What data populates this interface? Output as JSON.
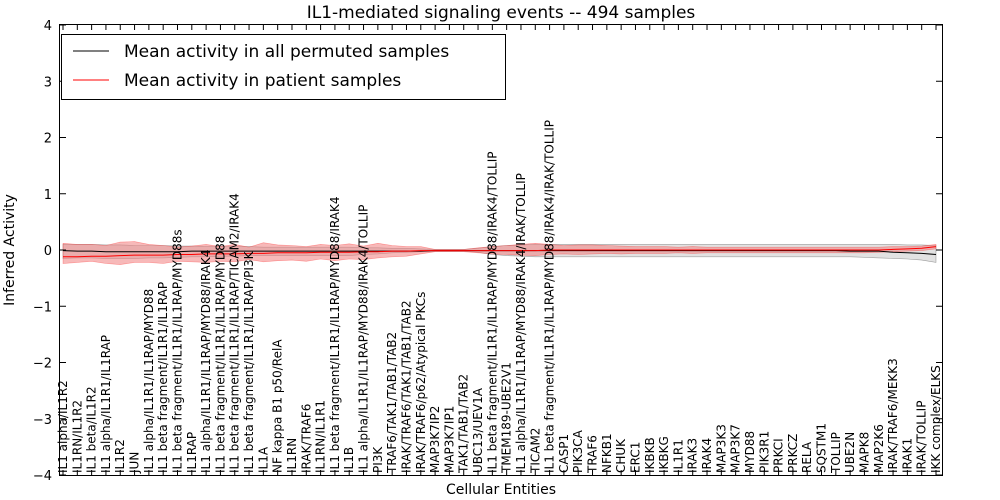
{
  "chart_data": {
    "type": "line",
    "title": "IL1-mediated signaling events -- 494 samples",
    "xlabel": "Cellular Entities",
    "ylabel": "Inferred Activity",
    "ylim": [
      -4,
      4
    ],
    "yticks": [
      -4,
      -3,
      -2,
      -1,
      0,
      1,
      2,
      3,
      4
    ],
    "grid": false,
    "legend_position": "top-left",
    "categories": [
      "IL1 alpha/IL1R2",
      "IL1RN/IL1R2",
      "IL1 beta/IL1R2",
      "IL1 alpha/IL1R1/IL1RAP",
      "IL1R2",
      "JUN",
      "IL1 alpha/IL1R1/IL1RAP/MYD88",
      "IL1 beta fragment/IL1R1/IL1RAP",
      "IL1 beta fragment/IL1R1/IL1RAP/MYD88s",
      "IL1RAP",
      "IL1 alpha/IL1R1/IL1RAP/MYD88/IRAK4",
      "IL1 beta fragment/IL1R1/IL1RAP/MYD88",
      "IL1 beta fragment/IL1R1/IL1RAP/TICAM2/IRAK4",
      "IL1 beta fragment/IL1R1/IL1RAP/PI3K",
      "IL1A",
      "NF kappa B1 p50/RelA",
      "IL1RN",
      "IRAK/TRAF6",
      "IL1RN/IL1R1",
      "IL1 beta fragment/IL1R1/IL1RAP/MYD88/IRAK4",
      "IL1B",
      "IL1 alpha/IL1R1/IL1RAP/MYD88/IRAK4/TOLLIP",
      "PI3K",
      "TRAF6/TAK1/TAB1/TAB2",
      "IRAK/TRAF6/TAK1/TAB1/TAB2",
      "IRAK/TRAF6/p62/Atypical PKCs",
      "MAP3K7IP2",
      "MAP3K7IP1",
      "TAK1/TAB1/TAB2",
      "UBC13/UEV1A",
      "IL1 beta fragment/IL1R1/IL1RAP/MYD88/IRAK4/TOLLIP",
      "TMEM189-UBE2V1",
      "IL1 alpha/IL1R1/IL1RAP/MYD88/IRAK4/IRAK/TOLLIP",
      "TICAM2",
      "IL1 beta fragment/IL1R1/IL1RAP/MYD88/IRAK4/IRAK/TOLLIP",
      "CASP1",
      "PIK3CA",
      "TRAF6",
      "NFKB1",
      "CHUK",
      "ERC1",
      "IKBKB",
      "IKBKG",
      "IL1R1",
      "IRAK3",
      "IRAK4",
      "MAP3K3",
      "MAP3K7",
      "MYD88",
      "PIK3R1",
      "PRKCI",
      "PRKCZ",
      "RELA",
      "SQSTM1",
      "TOLLIP",
      "UBE2N",
      "MAPK8",
      "MAP2K6",
      "IRAK/TRAF6/MEKK3",
      "IRAK1",
      "IRAK/TOLLIP",
      "IKK complex/ELKS"
    ],
    "series": [
      {
        "name": "Mean activity in all permuted samples",
        "color": "#000000",
        "band_color": "#bfbfbf",
        "values": [
          -0.01,
          -0.02,
          -0.02,
          -0.03,
          -0.03,
          -0.03,
          -0.03,
          -0.03,
          -0.03,
          -0.02,
          -0.02,
          -0.02,
          -0.02,
          -0.02,
          -0.02,
          -0.02,
          -0.02,
          -0.02,
          -0.02,
          -0.02,
          -0.02,
          -0.02,
          -0.02,
          -0.02,
          -0.02,
          -0.02,
          -0.01,
          -0.01,
          -0.01,
          -0.01,
          -0.01,
          -0.01,
          -0.01,
          -0.01,
          -0.01,
          -0.01,
          -0.01,
          -0.01,
          -0.01,
          -0.01,
          -0.01,
          -0.01,
          -0.01,
          -0.01,
          -0.01,
          -0.01,
          -0.01,
          -0.01,
          -0.01,
          -0.01,
          -0.01,
          -0.01,
          -0.01,
          -0.01,
          -0.01,
          -0.02,
          -0.02,
          -0.02,
          -0.04,
          -0.05,
          -0.06,
          -0.08
        ],
        "band_low": [
          -0.15,
          -0.14,
          -0.14,
          -0.15,
          -0.15,
          -0.15,
          -0.14,
          -0.14,
          -0.13,
          -0.12,
          -0.12,
          -0.11,
          -0.11,
          -0.1,
          -0.1,
          -0.1,
          -0.1,
          -0.1,
          -0.1,
          -0.1,
          -0.1,
          -0.08,
          -0.07,
          -0.05,
          -0.04,
          -0.03,
          -0.02,
          -0.02,
          -0.02,
          -0.04,
          -0.08,
          -0.1,
          -0.11,
          -0.12,
          -0.12,
          -0.12,
          -0.12,
          -0.12,
          -0.12,
          -0.12,
          -0.12,
          -0.12,
          -0.12,
          -0.12,
          -0.12,
          -0.12,
          -0.12,
          -0.12,
          -0.12,
          -0.12,
          -0.12,
          -0.12,
          -0.12,
          -0.12,
          -0.12,
          -0.12,
          -0.13,
          -0.14,
          -0.15,
          -0.16,
          -0.18,
          -0.22
        ],
        "band_high": [
          0.1,
          0.1,
          0.1,
          0.09,
          0.09,
          0.08,
          0.08,
          0.08,
          0.07,
          0.07,
          0.06,
          0.06,
          0.06,
          0.06,
          0.05,
          0.05,
          0.05,
          0.05,
          0.05,
          0.05,
          0.05,
          0.04,
          0.04,
          0.03,
          0.03,
          0.02,
          0.01,
          0.01,
          0.01,
          0.03,
          0.06,
          0.08,
          0.09,
          0.1,
          0.1,
          0.1,
          0.1,
          0.1,
          0.1,
          0.1,
          0.1,
          0.1,
          0.1,
          0.1,
          0.1,
          0.1,
          0.1,
          0.1,
          0.1,
          0.1,
          0.1,
          0.1,
          0.1,
          0.1,
          0.1,
          0.1,
          0.1,
          0.1,
          0.1,
          0.09,
          0.09,
          0.08
        ]
      },
      {
        "name": "Mean activity in patient samples",
        "color": "#ff0000",
        "band_color": "#f08080",
        "values": [
          -0.12,
          -0.12,
          -0.11,
          -0.11,
          -0.1,
          -0.09,
          -0.09,
          -0.09,
          -0.08,
          -0.08,
          -0.07,
          -0.07,
          -0.07,
          -0.06,
          -0.06,
          -0.05,
          -0.05,
          -0.05,
          -0.04,
          -0.04,
          -0.04,
          -0.03,
          -0.03,
          -0.02,
          -0.02,
          -0.01,
          -0.01,
          -0.01,
          -0.01,
          -0.01,
          -0.01,
          -0.01,
          -0.01,
          -0.01,
          0,
          0,
          0,
          0,
          0,
          0,
          0,
          0,
          0,
          0,
          0,
          0,
          0,
          0,
          0,
          0,
          0,
          0,
          0,
          0,
          0,
          0,
          0,
          0,
          0.01,
          0.02,
          0.03,
          0.06
        ],
        "band_low": [
          -0.24,
          -0.22,
          -0.2,
          -0.24,
          -0.26,
          -0.22,
          -0.22,
          -0.24,
          -0.2,
          -0.21,
          -0.22,
          -0.2,
          -0.21,
          -0.17,
          -0.21,
          -0.19,
          -0.18,
          -0.2,
          -0.16,
          -0.19,
          -0.16,
          -0.17,
          -0.14,
          -0.12,
          -0.11,
          -0.07,
          -0.03,
          -0.03,
          -0.03,
          -0.05,
          -0.07,
          -0.08,
          -0.09,
          -0.1,
          -0.08,
          -0.07,
          -0.08,
          -0.07,
          -0.06,
          -0.07,
          -0.06,
          -0.06,
          -0.06,
          -0.05,
          -0.06,
          -0.05,
          -0.05,
          -0.05,
          -0.05,
          -0.05,
          -0.05,
          -0.05,
          -0.05,
          -0.05,
          -0.05,
          -0.05,
          -0.05,
          -0.04,
          -0.03,
          -0.02,
          -0.01,
          0.02
        ],
        "band_high": [
          0.12,
          0.1,
          0.1,
          0.08,
          0.14,
          0.15,
          0.1,
          0.08,
          0.05,
          0.07,
          0.1,
          0.06,
          0.1,
          0.05,
          0.13,
          0.09,
          0.08,
          0.06,
          0.1,
          0.08,
          0.11,
          0.07,
          0.12,
          0.08,
          0.06,
          0.06,
          0.01,
          0.01,
          0.01,
          0.04,
          0.06,
          0.08,
          0.1,
          0.12,
          0.1,
          0.08,
          0.09,
          0.09,
          0.08,
          0.07,
          0.06,
          0.06,
          0.06,
          0.05,
          0.06,
          0.05,
          0.05,
          0.05,
          0.05,
          0.05,
          0.05,
          0.05,
          0.05,
          0.05,
          0.05,
          0.05,
          0.05,
          0.05,
          0.06,
          0.06,
          0.07,
          0.1
        ]
      }
    ]
  }
}
